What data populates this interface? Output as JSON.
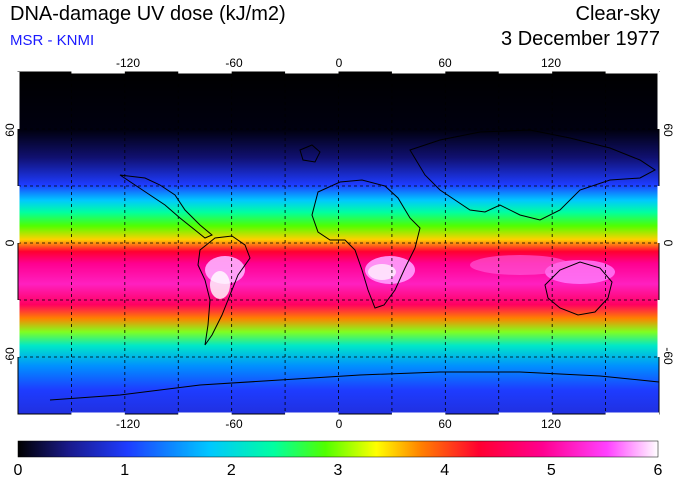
{
  "header": {
    "title": "DNA-damage UV dose (kJ/m2)",
    "subtitle": "MSR - KNMI",
    "condition": "Clear-sky",
    "date": "3 December 1977"
  },
  "colors": {
    "subtitle": "#1a1aff",
    "scale": [
      "#000000",
      "#1a1a8c",
      "#1e3cff",
      "#00c8ff",
      "#00ffa0",
      "#50ff00",
      "#ffff00",
      "#ff8000",
      "#ff0030",
      "#ff0090",
      "#ff40ff",
      "#ffffff"
    ]
  },
  "map": {
    "lon_ticks": [
      "-120",
      "-60",
      "0",
      "60",
      "120"
    ],
    "lat_ticks": [
      "60",
      "0",
      "-60"
    ],
    "lon_range": [
      -180,
      180
    ],
    "lat_range": [
      -90,
      90
    ]
  },
  "colorbar": {
    "labels": [
      "0",
      "1",
      "2",
      "3",
      "4",
      "5",
      "6"
    ],
    "range": [
      0,
      6
    ]
  }
}
